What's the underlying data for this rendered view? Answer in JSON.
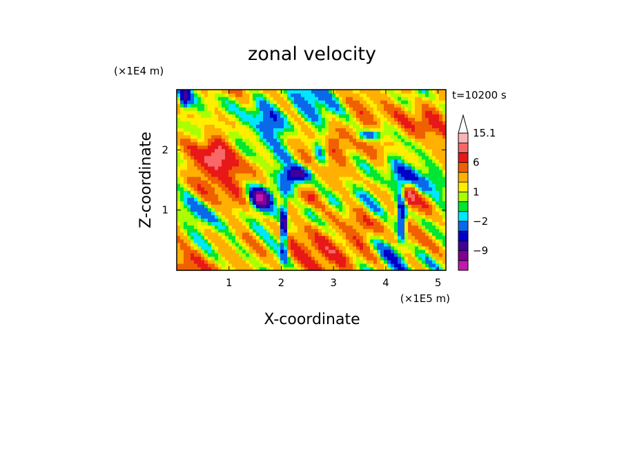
{
  "chart_data": {
    "type": "heatmap",
    "title": "zonal velocity",
    "xlabel": "X-coordinate",
    "ylabel": "Z-coordinate",
    "x_unit_label": "(×1E5 m)",
    "y_unit_label": "(×1E4 m)",
    "time_label": "t=10200 s",
    "xlim": [
      0.0,
      5.15
    ],
    "ylim": [
      0.0,
      3.0
    ],
    "x_ticks": [
      1,
      2,
      3,
      4,
      5
    ],
    "x_tick_labels": [
      "1",
      "2",
      "3",
      "4",
      "5"
    ],
    "y_ticks": [
      1,
      2
    ],
    "y_tick_labels": [
      "1",
      "2"
    ],
    "colorbar": {
      "extend": "max",
      "levels": [
        -15,
        -12,
        -9,
        -6,
        -4,
        -2,
        -1,
        0,
        1,
        2,
        4,
        6,
        9,
        12,
        15.1
      ],
      "colors": [
        "#f01bbd",
        "#c01aaf",
        "#800090",
        "#400099",
        "#0000c8",
        "#0a68ea",
        "#00e6ff",
        "#00e632",
        "#aaff00",
        "#ffee00",
        "#ffb000",
        "#f06000",
        "#e81818",
        "#f86868",
        "#fab4b4",
        "#ffffff"
      ],
      "tick_labels": [
        {
          "value": -9,
          "label": "−9"
        },
        {
          "value": -2,
          "label": "−2"
        },
        {
          "value": 1,
          "label": "1"
        },
        {
          "value": 6,
          "label": "6"
        },
        {
          "value": 15.1,
          "label": "15.1"
        }
      ]
    },
    "features": [
      {
        "x": 1.6,
        "z": 1.2,
        "sx": 0.22,
        "sz": 0.18,
        "u": -12
      },
      {
        "x": 2.05,
        "z": 0.7,
        "sx": 0.06,
        "sz": 0.45,
        "u": -10
      },
      {
        "x": 2.3,
        "z": 1.6,
        "sx": 0.25,
        "sz": 0.12,
        "u": -8
      },
      {
        "x": 2.75,
        "z": 2.0,
        "sx": 0.15,
        "sz": 0.3,
        "u": -5
      },
      {
        "x": 3.7,
        "z": 2.25,
        "sx": 0.25,
        "sz": 0.1,
        "u": -6
      },
      {
        "x": 4.3,
        "z": 0.9,
        "sx": 0.1,
        "sz": 0.4,
        "u": -9
      },
      {
        "x": 4.45,
        "z": 1.25,
        "sx": 0.15,
        "sz": 0.2,
        "u": 9
      },
      {
        "x": 2.45,
        "z": 1.2,
        "sx": 0.3,
        "sz": 0.2,
        "u": 6
      },
      {
        "x": 0.8,
        "z": 2.0,
        "sx": 0.25,
        "sz": 0.3,
        "u": 5
      },
      {
        "x": 4.7,
        "z": 1.1,
        "sx": 0.25,
        "sz": 0.3,
        "u": 5
      },
      {
        "x": 4.85,
        "z": 2.65,
        "sx": 0.3,
        "sz": 0.3,
        "u": 4
      },
      {
        "x": 3.05,
        "z": 2.2,
        "sx": 0.3,
        "sz": 0.4,
        "u": 3
      },
      {
        "x": 0.5,
        "z": 1.0,
        "sx": 0.4,
        "sz": 0.4,
        "u": -1.2
      },
      {
        "x": 1.8,
        "z": 2.4,
        "sx": 0.35,
        "sz": 0.3,
        "u": -1.5
      },
      {
        "x": 3.6,
        "z": 0.7,
        "sx": 0.35,
        "sz": 0.35,
        "u": 3
      },
      {
        "x": 0.15,
        "z": 2.85,
        "sx": 0.1,
        "sz": 0.2,
        "u": -6
      },
      {
        "x": 4.9,
        "z": 1.6,
        "sx": 0.2,
        "sz": 0.3,
        "u": -0.5
      }
    ]
  }
}
